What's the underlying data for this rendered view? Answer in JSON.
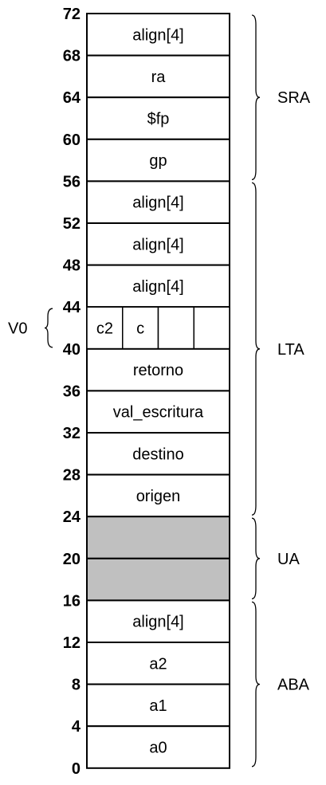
{
  "stack": {
    "cells": [
      {
        "label": "align[4]",
        "shaded": false
      },
      {
        "label": "ra",
        "shaded": false
      },
      {
        "label": "$fp",
        "shaded": false
      },
      {
        "label": "gp",
        "shaded": false
      },
      {
        "label": "align[4]",
        "shaded": false
      },
      {
        "label": "align[4]",
        "shaded": false
      },
      {
        "label": "align[4]",
        "shaded": false
      },
      {
        "label": "",
        "shaded": false,
        "subcells": [
          "c2",
          "c",
          "",
          ""
        ]
      },
      {
        "label": "retorno",
        "shaded": false
      },
      {
        "label": "val_escritura",
        "shaded": false
      },
      {
        "label": "destino",
        "shaded": false
      },
      {
        "label": "origen",
        "shaded": false
      },
      {
        "label": "",
        "shaded": true
      },
      {
        "label": "",
        "shaded": true
      },
      {
        "label": "align[4]",
        "shaded": false
      },
      {
        "label": "a2",
        "shaded": false
      },
      {
        "label": "a1",
        "shaded": false
      },
      {
        "label": "a0",
        "shaded": false
      }
    ],
    "addresses": [
      "72",
      "68",
      "64",
      "60",
      "56",
      "52",
      "48",
      "44",
      "40",
      "36",
      "32",
      "28",
      "24",
      "20",
      "16",
      "12",
      "8",
      "4",
      "0"
    ]
  },
  "regions": [
    {
      "label": "SRA",
      "from_cell": 0,
      "to_cell": 3
    },
    {
      "label": "LTA",
      "from_cell": 4,
      "to_cell": 11
    },
    {
      "label": "UA",
      "from_cell": 12,
      "to_cell": 13
    },
    {
      "label": "ABA",
      "from_cell": 14,
      "to_cell": 17
    }
  ],
  "side_marker": {
    "label": "V0",
    "cell": 7
  },
  "colors": {
    "shaded": "#c0c0c0",
    "line": "#000000"
  }
}
